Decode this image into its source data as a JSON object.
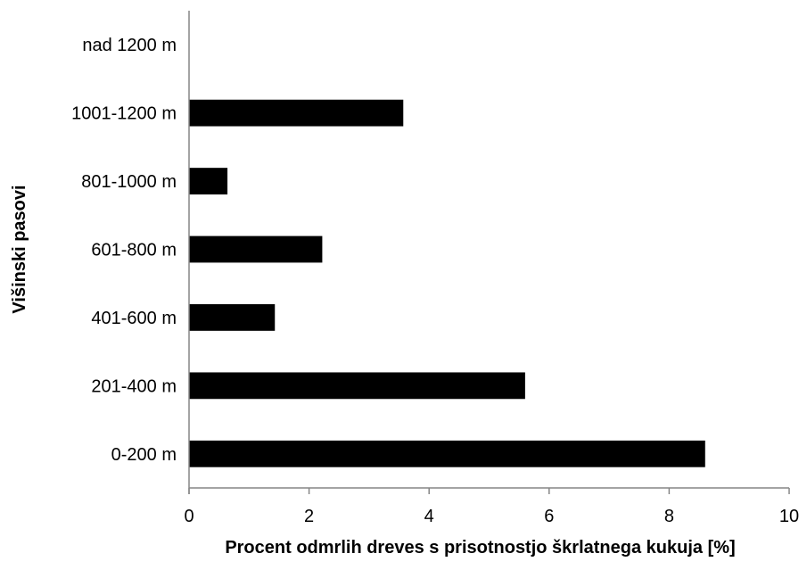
{
  "chart_data": {
    "type": "bar",
    "orientation": "horizontal",
    "title": "",
    "xlabel": "Procent odmrlih dreves s prisotnostjo škrlatnega kukuja [%]",
    "ylabel": "Višinski pasovi",
    "categories": [
      "0-200 m",
      "201-400 m",
      "401-600 m",
      "601-800 m",
      "801-1000 m",
      "1001-1200 m",
      "nad 1200 m"
    ],
    "values": [
      8.6,
      5.6,
      1.43,
      2.22,
      0.64,
      3.57,
      0
    ],
    "xlim": [
      0,
      10
    ],
    "xticks": [
      "0",
      "2",
      "4",
      "6",
      "8",
      "10"
    ],
    "grid": false,
    "legend": "none",
    "bar_color": "#000000"
  }
}
